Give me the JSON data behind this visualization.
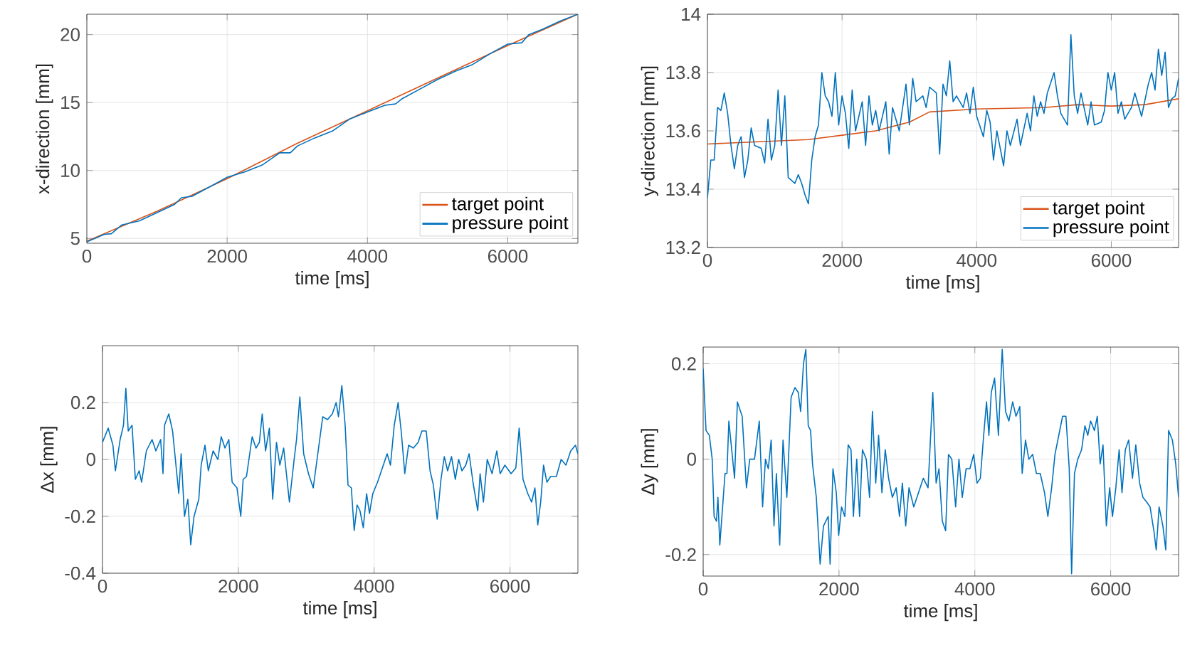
{
  "chart_data": [
    {
      "type": "line",
      "xlabel": "time [ms]",
      "ylabel": "x-direction [mm]",
      "xlim": [
        0,
        7000
      ],
      "ylim": [
        4.65,
        21.5
      ],
      "xticks": [
        0,
        2000,
        4000,
        6000
      ],
      "yticks": [
        5,
        10,
        15,
        20
      ],
      "grid": true,
      "legend": "bottom right",
      "series": [
        {
          "name": "target point",
          "color": "#d95319",
          "x": [
            0,
            1000,
            2000,
            3000,
            4000,
            5000,
            6000,
            7000
          ],
          "values": [
            4.8,
            7.0,
            9.4,
            12.0,
            14.4,
            16.8,
            19.2,
            21.5
          ]
        },
        {
          "name": "pressure point",
          "color": "#0072bd",
          "x": [
            0,
            250,
            350,
            500,
            750,
            1000,
            1250,
            1350,
            1500,
            1750,
            2000,
            2250,
            2500,
            2750,
            2900,
            3000,
            3250,
            3500,
            3750,
            4000,
            4250,
            4400,
            4500,
            4750,
            5000,
            5250,
            5500,
            5750,
            6000,
            6200,
            6300,
            6500,
            6750,
            7000
          ],
          "values": [
            4.75,
            5.3,
            5.35,
            6.0,
            6.3,
            6.9,
            7.5,
            8.0,
            8.1,
            8.8,
            9.5,
            9.9,
            10.4,
            11.3,
            11.3,
            11.8,
            12.4,
            12.9,
            13.8,
            14.3,
            14.8,
            14.9,
            15.3,
            16.0,
            16.7,
            17.3,
            17.8,
            18.6,
            19.3,
            19.4,
            20.0,
            20.4,
            21.0,
            21.5
          ]
        }
      ]
    },
    {
      "type": "line",
      "xlabel": "time [ms]",
      "ylabel": "y-direction [mm]",
      "xlim": [
        0,
        7000
      ],
      "ylim": [
        13.2,
        14
      ],
      "xticks": [
        0,
        2000,
        4000,
        6000
      ],
      "yticks": [
        13.2,
        13.4,
        13.6,
        13.8,
        14
      ],
      "grid": true,
      "legend": "bottom right",
      "series": [
        {
          "name": "target point",
          "color": "#d95319",
          "x": [
            0,
            1500,
            2000,
            2500,
            3000,
            3300,
            4000,
            5000,
            5500,
            6000,
            6500,
            7000
          ],
          "values": [
            13.555,
            13.57,
            13.585,
            13.6,
            13.63,
            13.665,
            13.675,
            13.68,
            13.69,
            13.685,
            13.69,
            13.71
          ]
        },
        {
          "name": "pressure point",
          "color": "#0072bd",
          "x": [
            0,
            50,
            100,
            150,
            200,
            250,
            300,
            350,
            400,
            450,
            500,
            550,
            600,
            650,
            700,
            800,
            850,
            900,
            950,
            1000,
            1050,
            1100,
            1150,
            1200,
            1300,
            1350,
            1400,
            1450,
            1500,
            1550,
            1600,
            1650,
            1700,
            1750,
            1800,
            1850,
            1900,
            1950,
            2000,
            2050,
            2100,
            2150,
            2200,
            2300,
            2350,
            2400,
            2450,
            2500,
            2550,
            2650,
            2700,
            2750,
            2850,
            2950,
            3000,
            3050,
            3100,
            3200,
            3250,
            3300,
            3400,
            3450,
            3500,
            3550,
            3600,
            3650,
            3700,
            3800,
            3850,
            3900,
            3950,
            4000,
            4100,
            4150,
            4200,
            4250,
            4300,
            4400,
            4450,
            4500,
            4600,
            4650,
            4750,
            4800,
            4850,
            4900,
            4950,
            5000,
            5050,
            5150,
            5200,
            5250,
            5350,
            5400,
            5450,
            5500,
            5550,
            5650,
            5700,
            5750,
            5850,
            5900,
            5950,
            6000,
            6050,
            6100,
            6150,
            6200,
            6300,
            6350,
            6450,
            6550,
            6600,
            6650,
            6700,
            6750,
            6800,
            6850,
            6900,
            6950,
            7000
          ],
          "values": [
            13.37,
            13.5,
            13.5,
            13.68,
            13.67,
            13.73,
            13.66,
            13.55,
            13.47,
            13.55,
            13.58,
            13.44,
            13.5,
            13.61,
            13.55,
            13.54,
            13.49,
            13.64,
            13.5,
            13.55,
            13.74,
            13.55,
            13.72,
            13.44,
            13.42,
            13.45,
            13.42,
            13.38,
            13.35,
            13.5,
            13.58,
            13.62,
            13.8,
            13.72,
            13.7,
            13.65,
            13.8,
            13.62,
            13.72,
            13.66,
            13.54,
            13.74,
            13.6,
            13.7,
            13.55,
            13.72,
            13.62,
            13.67,
            13.6,
            13.7,
            13.52,
            13.68,
            13.6,
            13.76,
            13.62,
            13.78,
            13.7,
            13.72,
            13.68,
            13.75,
            13.73,
            13.52,
            13.76,
            13.72,
            13.84,
            13.7,
            13.72,
            13.68,
            13.73,
            13.66,
            13.75,
            13.65,
            13.58,
            13.67,
            13.63,
            13.5,
            13.6,
            13.48,
            13.6,
            13.55,
            13.64,
            13.55,
            13.66,
            13.6,
            13.72,
            13.65,
            13.7,
            13.66,
            13.73,
            13.8,
            13.72,
            13.66,
            13.62,
            13.93,
            13.72,
            13.66,
            13.73,
            13.62,
            13.7,
            13.62,
            13.63,
            13.67,
            13.8,
            13.74,
            13.8,
            13.66,
            13.7,
            13.64,
            13.68,
            13.73,
            13.65,
            13.76,
            13.8,
            13.74,
            13.88,
            13.79,
            13.87,
            13.68,
            13.71,
            13.72,
            13.78
          ]
        }
      ]
    },
    {
      "type": "line",
      "xlabel": "time [ms]",
      "ylabel": "Δx [mm]",
      "xlim": [
        0,
        7000
      ],
      "ylim": [
        -0.4,
        0.4
      ],
      "xticks": [
        0,
        2000,
        4000,
        6000
      ],
      "yticks": [
        -0.4,
        -0.2,
        0,
        0.2
      ],
      "grid": true,
      "series": [
        {
          "color": "#0072bd",
          "x": [
            0,
            84,
            154,
            190,
            260,
            309,
            344,
            379,
            435,
            484,
            540,
            576,
            646,
            730,
            786,
            856,
            891,
            913,
            976,
            1032,
            1123,
            1158,
            1207,
            1257,
            1299,
            1348,
            1418,
            1453,
            1509,
            1558,
            1629,
            1699,
            1748,
            1804,
            1860,
            1909,
            1980,
            2036,
            2071,
            2120,
            2204,
            2260,
            2310,
            2352,
            2401,
            2457,
            2506,
            2562,
            2611,
            2668,
            2752,
            2822,
            2857,
            2906,
            2962,
            3033,
            3103,
            3159,
            3243,
            3313,
            3384,
            3440,
            3475,
            3524,
            3573,
            3615,
            3664,
            3706,
            3749,
            3791,
            3840,
            3889,
            3931,
            3980,
            4050,
            4121,
            4191,
            4240,
            4296,
            4353,
            4402,
            4451,
            4507,
            4577,
            4648,
            4703,
            4767,
            4823,
            4872,
            4928,
            4984,
            5033,
            5082,
            5139,
            5195,
            5244,
            5293,
            5349,
            5398,
            5455,
            5525,
            5560,
            5609,
            5665,
            5736,
            5806,
            5855,
            5925,
            6016,
            6086,
            6135,
            6192,
            6262,
            6318,
            6367,
            6409,
            6452,
            6494,
            6543,
            6599,
            6683,
            6753,
            6824,
            6894,
            6964,
            7000
          ],
          "values": [
            0.06,
            0.11,
            0.05,
            -0.04,
            0.07,
            0.12,
            0.25,
            0.1,
            0.12,
            -0.07,
            -0.04,
            -0.08,
            0.03,
            0.07,
            0.03,
            0.07,
            -0.05,
            0.12,
            0.16,
            0.1,
            -0.12,
            0.02,
            -0.2,
            -0.14,
            -0.3,
            -0.2,
            -0.14,
            -0.02,
            0.05,
            -0.04,
            0.03,
            0.0,
            0.08,
            0.04,
            0.07,
            -0.08,
            -0.1,
            -0.2,
            -0.07,
            -0.06,
            0.08,
            0.04,
            0.06,
            0.16,
            0.03,
            0.11,
            -0.14,
            0.06,
            -0.02,
            0.04,
            -0.15,
            0.0,
            0.07,
            0.22,
            0.02,
            -0.05,
            -0.1,
            0.0,
            0.15,
            0.14,
            0.16,
            0.2,
            0.15,
            0.26,
            0.12,
            -0.09,
            -0.1,
            -0.25,
            -0.16,
            -0.18,
            -0.24,
            -0.12,
            -0.19,
            -0.12,
            -0.08,
            -0.03,
            0.02,
            -0.02,
            0.12,
            0.2,
            0.09,
            -0.05,
            0.05,
            0.04,
            0.06,
            0.1,
            0.1,
            -0.04,
            -0.09,
            -0.21,
            -0.07,
            0.01,
            -0.04,
            0.01,
            -0.07,
            0.0,
            -0.04,
            -0.02,
            0.02,
            -0.08,
            -0.18,
            -0.05,
            -0.15,
            0.0,
            -0.05,
            0.03,
            -0.05,
            -0.02,
            -0.05,
            -0.03,
            0.11,
            -0.07,
            -0.12,
            -0.15,
            -0.1,
            -0.23,
            -0.15,
            -0.02,
            -0.08,
            -0.06,
            -0.06,
            0.0,
            -0.02,
            0.03,
            0.05,
            0.02
          ]
        }
      ]
    },
    {
      "type": "line",
      "xlabel": "time [ms]",
      "ylabel": "Δy [mm]",
      "xlim": [
        0,
        7000
      ],
      "ylim": [
        -0.245,
        0.235
      ],
      "xticks": [
        0,
        2000,
        4000,
        6000
      ],
      "yticks": [
        -0.2,
        0,
        0.2
      ],
      "grid": true,
      "series": [
        {
          "color": "#0072bd",
          "x": [
            0,
            42,
            91,
            133,
            161,
            196,
            217,
            245,
            322,
            350,
            378,
            420,
            462,
            504,
            574,
            637,
            686,
            756,
            826,
            875,
            917,
            959,
            1001,
            1043,
            1078,
            1127,
            1176,
            1232,
            1295,
            1351,
            1400,
            1435,
            1477,
            1512,
            1547,
            1582,
            1610,
            1666,
            1722,
            1771,
            1841,
            1869,
            1911,
            1960,
            1995,
            2037,
            2086,
            2135,
            2177,
            2212,
            2261,
            2303,
            2345,
            2401,
            2450,
            2492,
            2541,
            2583,
            2632,
            2681,
            2730,
            2786,
            2842,
            2891,
            2933,
            2982,
            3031,
            3101,
            3171,
            3241,
            3311,
            3381,
            3430,
            3472,
            3521,
            3570,
            3612,
            3661,
            3717,
            3766,
            3815,
            3871,
            3927,
            3983,
            4032,
            4081,
            4130,
            4172,
            4207,
            4242,
            4291,
            4347,
            4403,
            4452,
            4501,
            4557,
            4606,
            4662,
            4697,
            4746,
            4795,
            4851,
            4907,
            4963,
            5026,
            5075,
            5131,
            5180,
            5236,
            5292,
            5341,
            5390,
            5425,
            5467,
            5516,
            5572,
            5621,
            5663,
            5705,
            5761,
            5803,
            5845,
            5887,
            5936,
            5985,
            6027,
            6076,
            6125,
            6167,
            6216,
            6265,
            6321,
            6370,
            6426,
            6475,
            6531,
            6580,
            6636,
            6671,
            6713,
            6769,
            6811,
            6853,
            6909,
            6958,
            7000
          ],
          "values": [
            0.19,
            0.06,
            0.05,
            0.0,
            -0.12,
            -0.13,
            -0.08,
            -0.18,
            -0.03,
            -0.03,
            0.08,
            0.02,
            -0.04,
            0.12,
            0.09,
            -0.06,
            0.0,
            0.0,
            0.08,
            -0.1,
            0.0,
            -0.02,
            0.04,
            -0.14,
            -0.03,
            -0.18,
            0.04,
            -0.08,
            0.13,
            0.15,
            0.14,
            0.1,
            0.2,
            0.23,
            0.07,
            0.06,
            -0.01,
            -0.08,
            -0.22,
            -0.14,
            -0.12,
            -0.22,
            -0.02,
            -0.07,
            -0.16,
            -0.1,
            -0.12,
            0.03,
            0.02,
            -0.12,
            0.0,
            -0.12,
            0.02,
            0.0,
            -0.08,
            0.1,
            -0.05,
            0.05,
            -0.07,
            0.02,
            -0.04,
            -0.08,
            -0.06,
            -0.12,
            -0.05,
            -0.14,
            -0.06,
            -0.1,
            -0.07,
            -0.04,
            -0.06,
            0.14,
            -0.05,
            -0.02,
            -0.13,
            -0.15,
            0.01,
            0.0,
            -0.1,
            0.0,
            -0.08,
            -0.02,
            -0.02,
            0.01,
            -0.05,
            -0.04,
            0.05,
            0.12,
            0.05,
            0.14,
            0.17,
            0.05,
            0.23,
            0.1,
            0.08,
            0.12,
            0.09,
            0.11,
            -0.03,
            0.04,
            0.0,
            0.01,
            -0.03,
            -0.03,
            -0.07,
            -0.12,
            -0.06,
            0.01,
            0.05,
            0.09,
            0.09,
            -0.02,
            -0.24,
            -0.03,
            0.0,
            0.02,
            0.07,
            0.05,
            0.08,
            0.06,
            0.09,
            -0.01,
            0.03,
            -0.14,
            -0.06,
            -0.12,
            -0.06,
            0.02,
            -0.07,
            0.02,
            0.04,
            -0.04,
            0.03,
            -0.05,
            -0.08,
            -0.09,
            -0.1,
            -0.15,
            -0.19,
            -0.1,
            -0.14,
            -0.19,
            0.06,
            0.04,
            -0.01,
            -0.08
          ]
        }
      ]
    }
  ]
}
